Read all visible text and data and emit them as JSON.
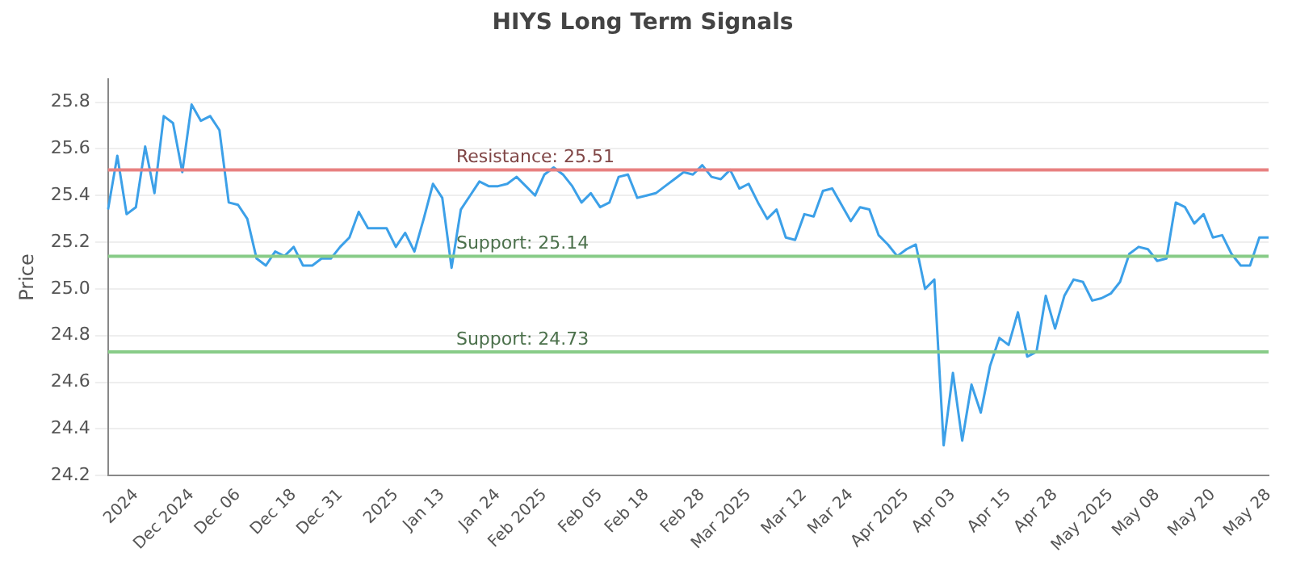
{
  "chart_data": {
    "type": "line",
    "title": "HIYS Long Term Signals",
    "ylabel": "Price",
    "categories": [
      null,
      null,
      null,
      "2024",
      null,
      null,
      null,
      null,
      null,
      "Dec 2024",
      null,
      null,
      null,
      null,
      "Dec 06",
      null,
      null,
      null,
      null,
      null,
      "Dec 18",
      null,
      null,
      null,
      null,
      "Dec 31",
      null,
      null,
      null,
      null,
      null,
      "2025",
      null,
      null,
      null,
      null,
      "Jan 13",
      null,
      null,
      null,
      null,
      null,
      "Jan 24",
      null,
      null,
      null,
      null,
      "Feb 2025",
      null,
      null,
      null,
      null,
      null,
      "Feb 05",
      null,
      null,
      null,
      null,
      "Feb 18",
      null,
      null,
      null,
      null,
      null,
      "Feb 28",
      null,
      null,
      null,
      null,
      "Mar 2025",
      null,
      null,
      null,
      null,
      null,
      "Mar 12",
      null,
      null,
      null,
      null,
      "Mar 24",
      null,
      null,
      null,
      null,
      null,
      "Apr 2025",
      null,
      null,
      null,
      null,
      "Apr 03",
      null,
      null,
      null,
      null,
      null,
      "Apr 15",
      null,
      null,
      null,
      null,
      "Apr 28",
      null,
      null,
      null,
      null,
      null,
      "May 2025",
      null,
      null,
      null,
      null,
      "May 08",
      null,
      null,
      null,
      null,
      null,
      "May 20",
      null,
      null,
      null,
      null,
      null,
      "May 28"
    ],
    "series": [
      {
        "color": "#3ca0e8",
        "values": [
          25.34,
          25.57,
          25.32,
          25.35,
          25.61,
          25.41,
          25.74,
          25.71,
          25.5,
          25.79,
          25.72,
          25.74,
          25.68,
          25.37,
          25.36,
          25.3,
          25.13,
          25.1,
          25.16,
          25.14,
          25.18,
          25.1,
          25.1,
          25.13,
          25.13,
          25.18,
          25.22,
          25.33,
          25.26,
          25.26,
          25.26,
          25.18,
          25.24,
          25.16,
          25.3,
          25.45,
          25.39,
          25.09,
          25.34,
          25.4,
          25.46,
          25.44,
          25.44,
          25.45,
          25.48,
          25.44,
          25.4,
          25.49,
          25.52,
          25.49,
          25.44,
          25.37,
          25.41,
          25.35,
          25.37,
          25.48,
          25.49,
          25.39,
          25.4,
          25.41,
          25.44,
          25.47,
          25.5,
          25.49,
          25.53,
          25.48,
          25.47,
          25.51,
          25.43,
          25.45,
          25.37,
          25.3,
          25.34,
          25.22,
          25.21,
          25.32,
          25.31,
          25.42,
          25.43,
          25.36,
          25.29,
          25.35,
          25.34,
          25.23,
          25.19,
          25.14,
          25.17,
          25.19,
          25.0,
          25.04,
          24.33,
          24.64,
          24.35,
          24.59,
          24.47,
          24.67,
          24.79,
          24.76,
          24.9,
          24.71,
          24.73,
          24.97,
          24.83,
          24.97,
          25.04,
          25.03,
          24.95,
          24.96,
          24.98,
          25.03,
          25.15,
          25.18,
          25.17,
          25.12,
          25.13,
          25.37,
          25.35,
          25.28,
          25.32,
          25.22,
          25.23,
          25.15,
          25.1,
          25.1,
          25.22,
          25.22
        ]
      }
    ],
    "ylim": [
      24.2,
      25.9
    ],
    "yticks": [
      24.2,
      24.4,
      24.6,
      24.8,
      {
        "value": 25,
        "label": "25.0"
      },
      25.2,
      25.4,
      25.6,
      25.8
    ],
    "grid": "y",
    "legend": false,
    "marker": "none",
    "line_style": "solid",
    "ref_lines": [
      {
        "axis": "y",
        "value": 25.51,
        "label": "Resistance: 25.51",
        "color": "#e88080"
      },
      {
        "axis": "y",
        "value": 25.14,
        "label": "Support: 25.14",
        "color": "#88cc88"
      },
      {
        "axis": "y",
        "value": 24.73,
        "label": "Support: 24.73",
        "color": "#88cc88"
      }
    ]
  }
}
